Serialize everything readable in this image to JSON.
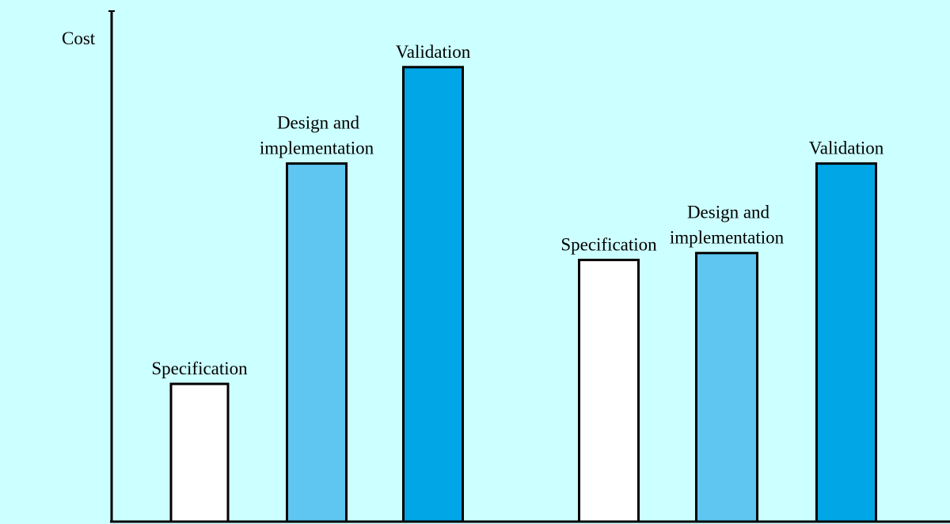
{
  "chart_data": [
    {
      "type": "bar",
      "categories": [
        "Specification",
        "Design and implementation",
        "Validation"
      ],
      "label_lines": [
        [
          "Specification"
        ],
        [
          "Design and",
          "implementation"
        ],
        [
          "Validation"
        ]
      ],
      "values": [
        1.0,
        2.6,
        3.3
      ],
      "colors": [
        "#ffffff",
        "#5ec6f0",
        "#00a6e6"
      ],
      "ylabel": "Cost"
    },
    {
      "type": "bar",
      "categories": [
        "Specification",
        "Design and implementation",
        "Validation"
      ],
      "label_lines": [
        [
          "Specification"
        ],
        [
          "Design and",
          "implementation"
        ],
        [
          "Validation"
        ]
      ],
      "values": [
        1.9,
        1.95,
        2.6
      ],
      "colors": [
        "#ffffff",
        "#5ec6f0",
        "#00a6e6"
      ]
    }
  ]
}
